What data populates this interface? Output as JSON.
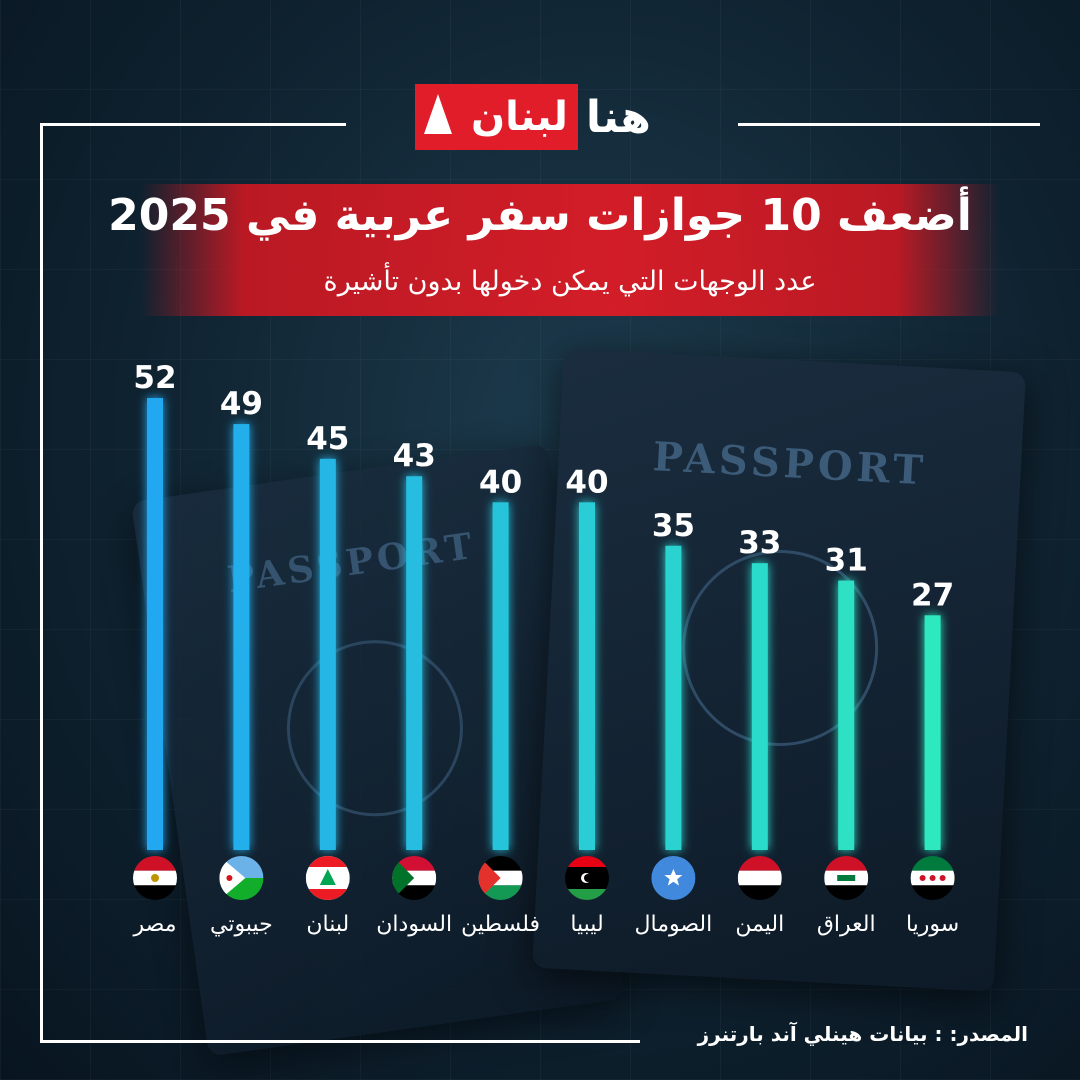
{
  "brand": {
    "name_red": "لبنان",
    "name_white": "هنا"
  },
  "header": {
    "title": "أضعف 10 جوازات سفر عربية في 2025",
    "subtitle": "عدد الوجهات التي يمكن دخولها بدون تأشيرة"
  },
  "background": {
    "passport_word": "PASSPORT"
  },
  "footer": {
    "source": "المصدر: : بيانات هينلي آند بارتنرز"
  },
  "colors": {
    "accent_red": "#e11d2a",
    "bar_blue": "#22a8f0",
    "bar_teal": "#2ee8c0",
    "background": "#0f2230"
  },
  "chart_data": {
    "type": "bar",
    "title": "أضعف 10 جوازات سفر عربية في 2025",
    "subtitle": "عدد الوجهات التي يمكن دخولها بدون تأشيرة",
    "xlabel": "",
    "ylabel": "",
    "categories": [
      "مصر",
      "جيبوتي",
      "لبنان",
      "السودان",
      "فلسطين",
      "ليبيا",
      "الصومال",
      "اليمن",
      "العراق",
      "سوريا"
    ],
    "values": [
      52,
      49,
      45,
      43,
      40,
      40,
      35,
      33,
      31,
      27
    ],
    "flags": [
      "egypt-flag-icon",
      "djibouti-flag-icon",
      "lebanon-flag-icon",
      "sudan-flag-icon",
      "palestine-flag-icon",
      "libya-flag-icon",
      "somalia-flag-icon",
      "yemen-flag-icon",
      "iraq-flag-icon",
      "syria-flag-icon"
    ],
    "ylim": [
      0,
      52
    ],
    "grid": false,
    "legend": "none"
  }
}
